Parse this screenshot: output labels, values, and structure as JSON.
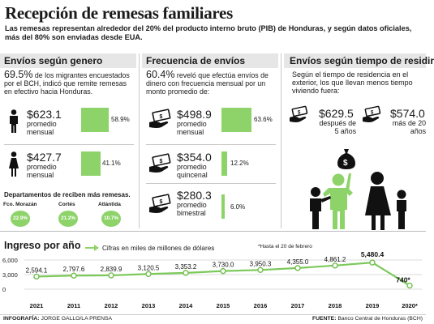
{
  "title": "Recepción de remesas familiares",
  "subtitle": "Las remesas representan alrededor del 20% del producto interno bruto (PIB) de Honduras, y según datos oficiales, más del 80% son enviadas desde EUA.",
  "genero": {
    "heading": "Envíos según genero",
    "stat": "69.5%",
    "text": "de los migrantes encuestados por el BCH, indicó que remite remesas en efectivo hacia Honduras.",
    "rows": [
      {
        "icon": "man-icon",
        "amount": "$623.1",
        "label": "promedio mensual",
        "pct_label": "58.9%",
        "pct": 58.9
      },
      {
        "icon": "woman-icon",
        "amount": "$427.7",
        "label": "promedio mensual",
        "pct_label": "41.1%",
        "pct": 41.1
      }
    ],
    "depts_heading": "Departamentos de reciben más remesas.",
    "depts": [
      {
        "name": "Fco. Morazán",
        "pct": "22.9%"
      },
      {
        "name": "Cortés",
        "pct": "21.2%"
      },
      {
        "name": "Atlántida",
        "pct": "10.7%"
      }
    ]
  },
  "frecuencia": {
    "heading": "Frecuencia de envíos",
    "stat": "60.4%",
    "text": "reveló que efectúa envíos de dinero con frecuencia mensual por un monto promedio de:",
    "rows": [
      {
        "amount": "$498.9",
        "label": "promedio mensual",
        "pct_label": "63.6%",
        "pct": 63.6
      },
      {
        "amount": "$354.0",
        "label": "promedio quincenal",
        "pct_label": "12.2%",
        "pct": 12.2
      },
      {
        "amount": "$280.3",
        "label": "promedio bimestral",
        "pct_label": "6.0%",
        "pct": 6.0
      }
    ]
  },
  "tiempo": {
    "heading": "Envíos según tiempo de residir",
    "text": "Según el tiempo de residencia en el exterior, los que llevan menos tiempo viviendo fuera:",
    "items": [
      {
        "amount": "$629.5",
        "label": "después de 5 años"
      },
      {
        "amount": "$574.0",
        "label": "más de 20 años"
      }
    ]
  },
  "ingreso": {
    "heading": "Ingreso por año",
    "legend": "Cifras en miles de millones de dólares",
    "note": "*Hasta el 20 de febrero"
  },
  "footer": {
    "credit_label": "INFOGRAFÍA:",
    "credit_value": "JORGE GALLO/LA PRENSA",
    "source_label": "FUENTE:",
    "source_value": "Banco Central de Honduras (BCH)"
  },
  "colors": {
    "accent_green": "#8ed36a",
    "line_green": "#7cc95a",
    "header_gray": "#e6e6e6"
  },
  "chart_data": {
    "type": "line",
    "x": [
      "2021",
      "2011",
      "2012",
      "2013",
      "2014",
      "2015",
      "2016",
      "2017",
      "2018",
      "2019",
      "2020*"
    ],
    "y_labels": [
      "2,594.1",
      "2,797.6",
      "2,839.9",
      "3,120.5",
      "3,353.2",
      "3,730.0",
      "3,950.3",
      "4,355.0",
      "4,861.2",
      "5,480.4",
      "740*"
    ],
    "values": [
      2594.1,
      2797.6,
      2839.9,
      3120.5,
      3353.2,
      3730.0,
      3950.3,
      4355.0,
      4861.2,
      5480.4,
      740
    ],
    "yticks": [
      "6,000",
      "3,000",
      "0"
    ],
    "ylim": [
      0,
      6000
    ],
    "grid": true
  }
}
